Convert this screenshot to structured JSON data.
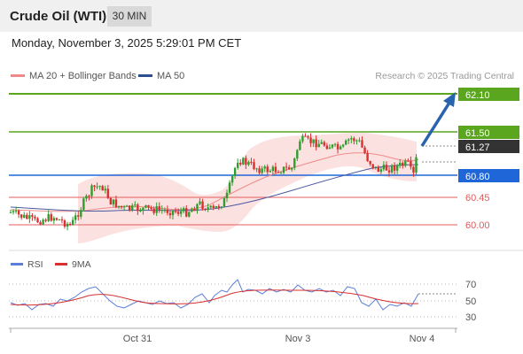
{
  "header": {
    "instrument": "Crude Oil (WTI)",
    "timeframe": "30 MIN"
  },
  "timestamp": "Monday, November 3, 2025 5:29:01 PM CET",
  "legend": {
    "ma20_label": "MA 20 + Bollinger Bands",
    "ma50_label": "MA 50",
    "credit": "Research © 2025 Trading Central"
  },
  "colors": {
    "resistance": "#5aa61e",
    "support": "#e35c5c",
    "pivot": "#1f66d8",
    "last_price": "#333333",
    "bollinger_fill": "#fbdcdc",
    "ma20": "#f08a8a",
    "ma50": "#4a5aa0",
    "candle_up": "#2f9e2f",
    "candle_down": "#d93030",
    "forecast_arrow": "#2a63ad",
    "rsi": "#5b7fd8",
    "rsi_ma": "#d93030"
  },
  "price_levels": [
    {
      "id": "r2",
      "label": "62.10",
      "type": "resistance"
    },
    {
      "id": "r1",
      "label": "61.50",
      "type": "resistance"
    },
    {
      "id": "last",
      "label": "61.27",
      "type": "last"
    },
    {
      "id": "pivot",
      "label": "60.80",
      "type": "pivot"
    },
    {
      "id": "s1",
      "label": "60.45",
      "type": "support"
    },
    {
      "id": "s2",
      "label": "60.00",
      "type": "support"
    }
  ],
  "rsi_panel": {
    "rsi_label": "RSI",
    "ma_label": "9MA",
    "levels": [
      "70",
      "50",
      "30"
    ]
  },
  "x_axis": {
    "labels": [
      "Oct 31",
      "Nov 3",
      "Nov 4"
    ]
  }
}
